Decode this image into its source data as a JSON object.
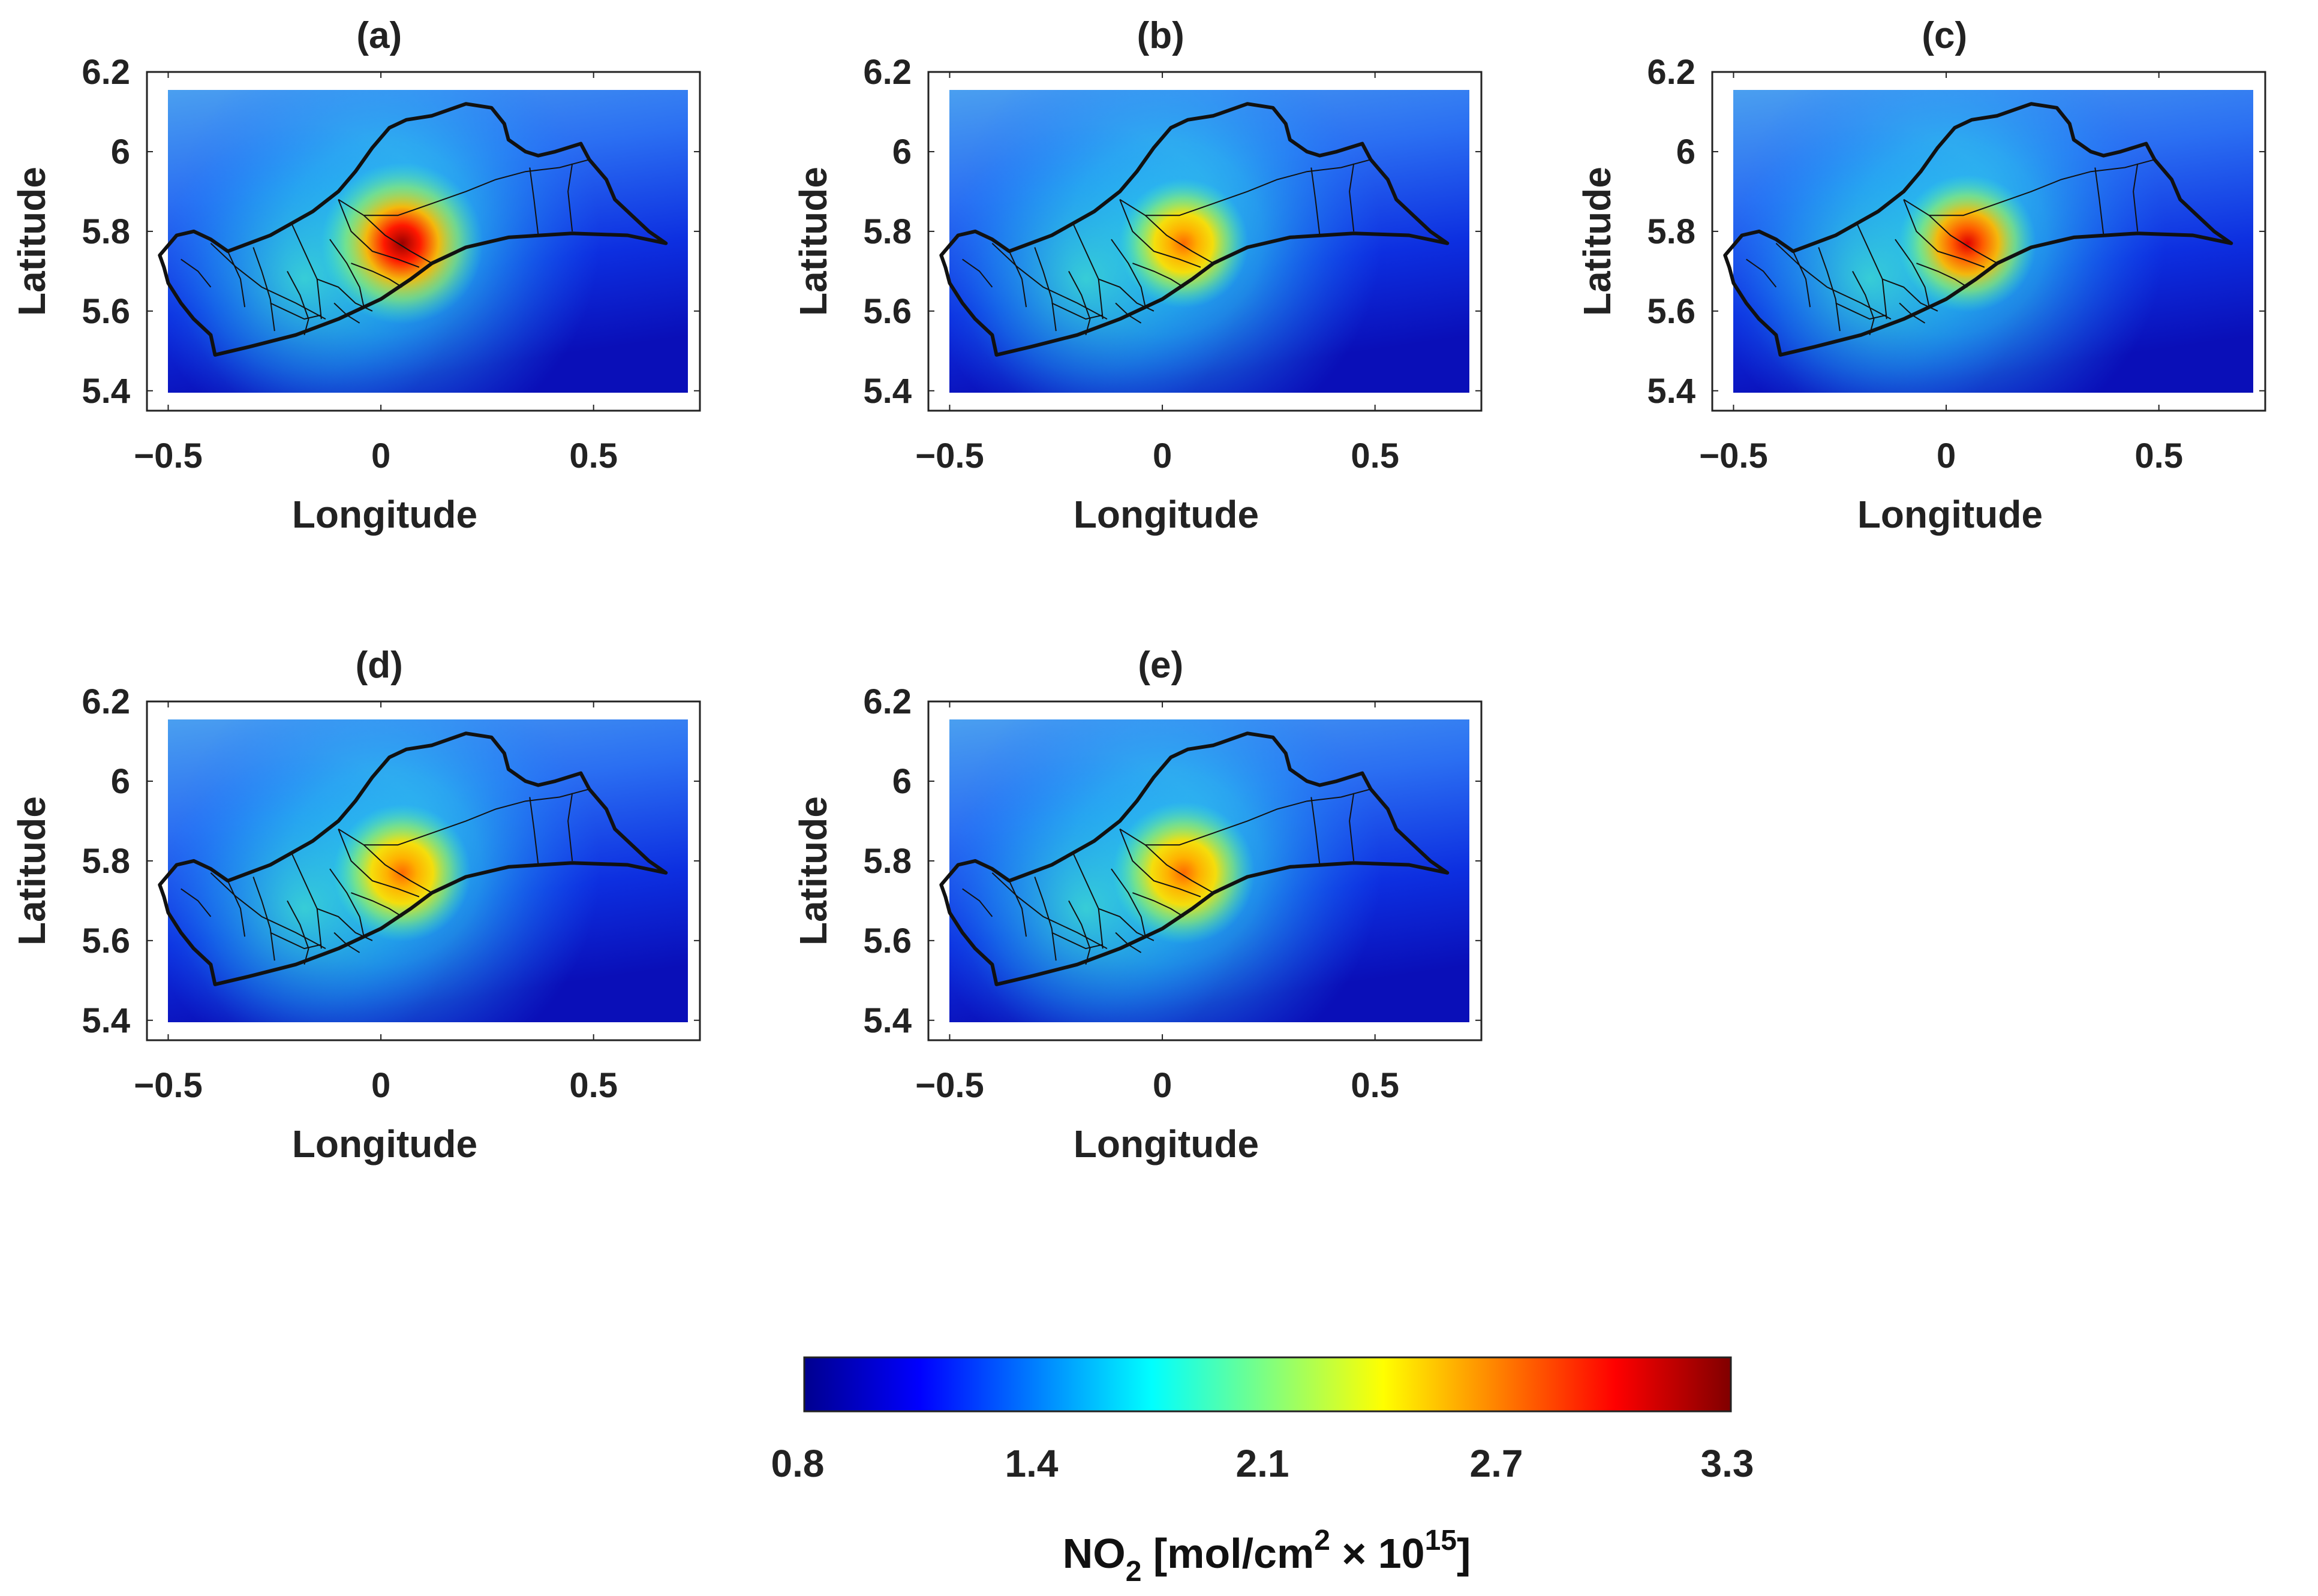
{
  "figure": {
    "panels": [
      {
        "id": "a",
        "title": "(a)",
        "xlabel": "Longitude",
        "ylabel": "Latitude",
        "intensity": 1.0,
        "spread": 1.0
      },
      {
        "id": "b",
        "title": "(b)",
        "xlabel": "Longitude",
        "ylabel": "Latitude",
        "intensity": 0.8,
        "spread": 0.8
      },
      {
        "id": "c",
        "title": "(c)",
        "xlabel": "Longitude",
        "ylabel": "Latitude",
        "intensity": 0.9,
        "spread": 0.85
      },
      {
        "id": "d",
        "title": "(d)",
        "xlabel": "Longitude",
        "ylabel": "Latitude",
        "intensity": 0.72,
        "spread": 0.85
      },
      {
        "id": "e",
        "title": "(e)",
        "xlabel": "Longitude",
        "ylabel": "Latitude",
        "intensity": 0.72,
        "spread": 0.88
      }
    ],
    "x_ticks": [
      "−0.5",
      "0",
      "0.5"
    ],
    "y_ticks": [
      "6.2",
      "6",
      "5.8",
      "5.6",
      "5.4"
    ],
    "colorbar": {
      "ticks": [
        "0.8",
        "1.4",
        "2.1",
        "2.7",
        "3.3"
      ],
      "label_main": "NO",
      "label_sub": "2",
      "label_rest": " [mol/cm",
      "label_sup": "2",
      "label_times": " × 10",
      "label_exp": "15",
      "label_end": "]"
    }
  },
  "chart_data": {
    "type": "heatmap",
    "variable": "NO2",
    "units": "mol/cm^2 x 10^15",
    "xlim": [
      -0.55,
      0.75
    ],
    "ylim": [
      5.35,
      6.2
    ],
    "x_ticks": [
      -0.5,
      0,
      0.5
    ],
    "y_ticks": [
      5.4,
      5.6,
      5.8,
      6.0,
      6.2
    ],
    "color_range": [
      0.8,
      3.3
    ],
    "colorbar_ticks": [
      0.8,
      1.4,
      2.1,
      2.7,
      3.3
    ],
    "hotspot": {
      "lon": 0.05,
      "lat": 5.77
    },
    "panels": [
      {
        "id": "a",
        "peak_value": 3.3
      },
      {
        "id": "b",
        "peak_value": 2.8
      },
      {
        "id": "c",
        "peak_value": 3.0
      },
      {
        "id": "d",
        "peak_value": 2.6
      },
      {
        "id": "e",
        "peak_value": 2.6
      }
    ]
  }
}
